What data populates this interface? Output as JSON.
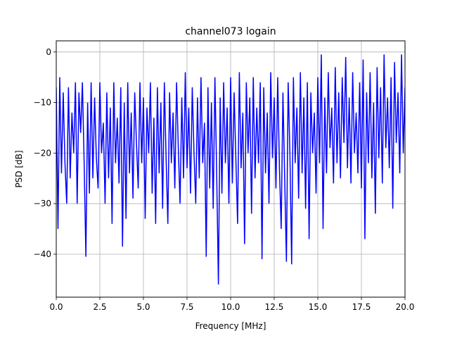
{
  "chart_data": {
    "type": "line",
    "title": "channel073 logain",
    "xlabel": "Frequency [MHz]",
    "ylabel": "PSD [dB]",
    "xlim": [
      0,
      20
    ],
    "ylim": [
      -48.5,
      2.2
    ],
    "xticks": [
      0,
      2.5,
      5,
      7.5,
      10,
      12.5,
      15,
      17.5,
      20
    ],
    "xtick_labels": [
      "0.0",
      "2.5",
      "5.0",
      "7.5",
      "10.0",
      "12.5",
      "15.0",
      "17.5",
      "20.0"
    ],
    "yticks": [
      0,
      -10,
      -20,
      -30,
      -40
    ],
    "ytick_labels": [
      "0",
      "−10",
      "−20",
      "−30",
      "−40"
    ],
    "grid": true,
    "line_color": "#0000ff",
    "series": [
      {
        "points": [
          [
            0.0,
            -7
          ],
          [
            0.1,
            -35
          ],
          [
            0.2,
            -5
          ],
          [
            0.3,
            -24
          ],
          [
            0.4,
            -8
          ],
          [
            0.5,
            -22
          ],
          [
            0.6,
            -30
          ],
          [
            0.7,
            -7
          ],
          [
            0.8,
            -25
          ],
          [
            0.9,
            -12
          ],
          [
            1.0,
            -20
          ],
          [
            1.1,
            -6
          ],
          [
            1.2,
            -30
          ],
          [
            1.3,
            -8
          ],
          [
            1.4,
            -16
          ],
          [
            1.5,
            -6
          ],
          [
            1.6,
            -22
          ],
          [
            1.7,
            -40.5
          ],
          [
            1.8,
            -10
          ],
          [
            1.9,
            -28
          ],
          [
            2.0,
            -6
          ],
          [
            2.1,
            -25
          ],
          [
            2.2,
            -9
          ],
          [
            2.3,
            -21
          ],
          [
            2.4,
            -27
          ],
          [
            2.5,
            -6
          ],
          [
            2.6,
            -20
          ],
          [
            2.7,
            -14
          ],
          [
            2.8,
            -30
          ],
          [
            2.9,
            -8
          ],
          [
            3.0,
            -25
          ],
          [
            3.1,
            -11
          ],
          [
            3.2,
            -34
          ],
          [
            3.3,
            -6
          ],
          [
            3.4,
            -22
          ],
          [
            3.5,
            -13
          ],
          [
            3.6,
            -26
          ],
          [
            3.7,
            -7
          ],
          [
            3.8,
            -38.5
          ],
          [
            3.9,
            -10
          ],
          [
            4.0,
            -33
          ],
          [
            4.1,
            -6
          ],
          [
            4.2,
            -24
          ],
          [
            4.3,
            -12
          ],
          [
            4.4,
            -29
          ],
          [
            4.5,
            -8
          ],
          [
            4.6,
            -18
          ],
          [
            4.7,
            -27
          ],
          [
            4.8,
            -6
          ],
          [
            4.9,
            -22
          ],
          [
            5.0,
            -9
          ],
          [
            5.1,
            -33
          ],
          [
            5.2,
            -11
          ],
          [
            5.3,
            -20
          ],
          [
            5.4,
            -6
          ],
          [
            5.5,
            -28
          ],
          [
            5.6,
            -13
          ],
          [
            5.7,
            -34
          ],
          [
            5.8,
            -7
          ],
          [
            5.9,
            -24
          ],
          [
            6.0,
            -10
          ],
          [
            6.1,
            -31
          ],
          [
            6.2,
            -6
          ],
          [
            6.3,
            -21
          ],
          [
            6.4,
            -34
          ],
          [
            6.5,
            -8
          ],
          [
            6.6,
            -22
          ],
          [
            6.7,
            -12
          ],
          [
            6.8,
            -27
          ],
          [
            6.9,
            -6
          ],
          [
            7.0,
            -19
          ],
          [
            7.1,
            -30
          ],
          [
            7.2,
            -9
          ],
          [
            7.3,
            -25
          ],
          [
            7.4,
            -4
          ],
          [
            7.5,
            -23
          ],
          [
            7.6,
            -11
          ],
          [
            7.7,
            -28
          ],
          [
            7.8,
            -7
          ],
          [
            7.9,
            -20
          ],
          [
            8.0,
            -30
          ],
          [
            8.1,
            -9
          ],
          [
            8.2,
            -25
          ],
          [
            8.3,
            -5
          ],
          [
            8.4,
            -22
          ],
          [
            8.5,
            -14
          ],
          [
            8.6,
            -40.5
          ],
          [
            8.7,
            -7
          ],
          [
            8.8,
            -27
          ],
          [
            8.9,
            -10
          ],
          [
            9.0,
            -31
          ],
          [
            9.1,
            -5
          ],
          [
            9.2,
            -24
          ],
          [
            9.3,
            -46
          ],
          [
            9.4,
            -9
          ],
          [
            9.5,
            -28
          ],
          [
            9.6,
            -6
          ],
          [
            9.7,
            -22
          ],
          [
            9.8,
            -11
          ],
          [
            9.9,
            -30
          ],
          [
            10.0,
            -5
          ],
          [
            10.1,
            -26
          ],
          [
            10.2,
            -8
          ],
          [
            10.3,
            -21
          ],
          [
            10.4,
            -34
          ],
          [
            10.5,
            -4
          ],
          [
            10.6,
            -23
          ],
          [
            10.7,
            -12
          ],
          [
            10.8,
            -38
          ],
          [
            10.9,
            -6
          ],
          [
            11.0,
            -20
          ],
          [
            11.1,
            -9
          ],
          [
            11.2,
            -32
          ],
          [
            11.3,
            -5
          ],
          [
            11.4,
            -25
          ],
          [
            11.5,
            -11
          ],
          [
            11.6,
            -22
          ],
          [
            11.7,
            -6
          ],
          [
            11.8,
            -41
          ],
          [
            11.9,
            -7
          ],
          [
            12.0,
            -24
          ],
          [
            12.1,
            -12
          ],
          [
            12.2,
            -30
          ],
          [
            12.3,
            -4
          ],
          [
            12.4,
            -21
          ],
          [
            12.5,
            -9
          ],
          [
            12.6,
            -27
          ],
          [
            12.7,
            -5
          ],
          [
            12.8,
            -23
          ],
          [
            12.9,
            -35
          ],
          [
            13.0,
            -8
          ],
          [
            13.1,
            -25
          ],
          [
            13.2,
            -41.5
          ],
          [
            13.3,
            -6
          ],
          [
            13.4,
            -20
          ],
          [
            13.5,
            -42
          ],
          [
            13.6,
            -5
          ],
          [
            13.7,
            -22
          ],
          [
            13.8,
            -11
          ],
          [
            13.9,
            -29
          ],
          [
            14.0,
            -4
          ],
          [
            14.1,
            -24
          ],
          [
            14.2,
            -9
          ],
          [
            14.3,
            -31
          ],
          [
            14.4,
            -6
          ],
          [
            14.5,
            -37
          ],
          [
            14.6,
            -8
          ],
          [
            14.7,
            -20
          ],
          [
            14.8,
            -12
          ],
          [
            14.9,
            -28
          ],
          [
            15.0,
            -5
          ],
          [
            15.1,
            -22
          ],
          [
            15.2,
            -0.5
          ],
          [
            15.3,
            -35
          ],
          [
            15.4,
            -9
          ],
          [
            15.5,
            -24
          ],
          [
            15.6,
            -4
          ],
          [
            15.7,
            -19
          ],
          [
            15.8,
            -11
          ],
          [
            15.9,
            -26
          ],
          [
            16.0,
            -3
          ],
          [
            16.1,
            -22
          ],
          [
            16.2,
            -8
          ],
          [
            16.3,
            -25
          ],
          [
            16.4,
            -5
          ],
          [
            16.5,
            -18
          ],
          [
            16.6,
            -1
          ],
          [
            16.7,
            -23
          ],
          [
            16.8,
            -9
          ],
          [
            16.9,
            -26
          ],
          [
            17.0,
            -4
          ],
          [
            17.1,
            -20
          ],
          [
            17.2,
            -12
          ],
          [
            17.3,
            -24
          ],
          [
            17.4,
            -6
          ],
          [
            17.5,
            -27
          ],
          [
            17.6,
            -1.5
          ],
          [
            17.7,
            -37
          ],
          [
            17.8,
            -8
          ],
          [
            17.9,
            -22
          ],
          [
            18.0,
            -4
          ],
          [
            18.1,
            -25
          ],
          [
            18.2,
            -10
          ],
          [
            18.3,
            -32
          ],
          [
            18.4,
            -3
          ],
          [
            18.5,
            -21
          ],
          [
            18.6,
            -7
          ],
          [
            18.7,
            -26
          ],
          [
            18.8,
            -0.5
          ],
          [
            18.9,
            -19
          ],
          [
            19.0,
            -9
          ],
          [
            19.1,
            -23
          ],
          [
            19.2,
            -5
          ],
          [
            19.3,
            -31
          ],
          [
            19.4,
            -2
          ],
          [
            19.5,
            -18
          ],
          [
            19.6,
            -8
          ],
          [
            19.7,
            -24
          ],
          [
            19.8,
            -0.5
          ],
          [
            19.9,
            -20
          ],
          [
            20.0,
            -7
          ]
        ]
      }
    ]
  }
}
